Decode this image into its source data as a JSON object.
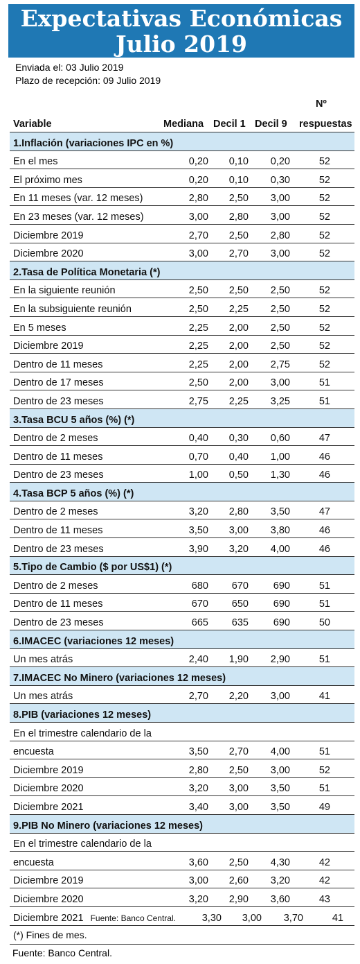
{
  "header": {
    "title_line1": "Expectativas Económicas",
    "title_line2": "Julio 2019"
  },
  "meta": {
    "sent": "Enviada el: 03 Julio 2019",
    "deadline": "Plazo de recepción: 09 Julio 2019"
  },
  "columns": {
    "variable": "Variable",
    "mediana": "Mediana",
    "decil1": "Decil 1",
    "decil9": "Decil 9",
    "n_line1": "Nº",
    "n_line2": "respuestas"
  },
  "sections": [
    {
      "title": "1.Inflación (variaciones IPC en %)",
      "rows": [
        {
          "label": "En el mes",
          "m": "0,20",
          "d1": "0,10",
          "d9": "0,20",
          "n": "52"
        },
        {
          "label": "El próximo mes",
          "m": "0,20",
          "d1": "0,10",
          "d9": "0,30",
          "n": "52"
        },
        {
          "label": "En 11 meses (var. 12 meses)",
          "m": "2,80",
          "d1": "2,50",
          "d9": "3,00",
          "n": "52"
        },
        {
          "label": "En 23 meses (var. 12 meses)",
          "m": "3,00",
          "d1": "2,80",
          "d9": "3,00",
          "n": "52"
        },
        {
          "label": "Diciembre 2019",
          "m": "2,70",
          "d1": "2,50",
          "d9": "2,80",
          "n": "52"
        },
        {
          "label": "Diciembre 2020",
          "m": "3,00",
          "d1": "2,70",
          "d9": "3,00",
          "n": "52"
        }
      ]
    },
    {
      "title": "2.Tasa de Política Monetaria  (*)",
      "rows": [
        {
          "label": "En la siguiente reunión",
          "m": "2,50",
          "d1": "2,50",
          "d9": "2,50",
          "n": "52"
        },
        {
          "label": "En la subsiguiente reunión",
          "m": "2,50",
          "d1": "2,25",
          "d9": "2,50",
          "n": "52"
        },
        {
          "label": "En 5 meses",
          "m": "2,25",
          "d1": "2,00",
          "d9": "2,50",
          "n": "52"
        },
        {
          "label": "Diciembre 2019",
          "m": "2,25",
          "d1": "2,00",
          "d9": "2,50",
          "n": "52"
        },
        {
          "label": "Dentro de 11 meses",
          "m": "2,25",
          "d1": "2,00",
          "d9": "2,75",
          "n": "52"
        },
        {
          "label": "Dentro de 17 meses",
          "m": "2,50",
          "d1": "2,00",
          "d9": "3,00",
          "n": "51"
        },
        {
          "label": "Dentro de 23 meses",
          "m": "2,75",
          "d1": "2,25",
          "d9": "3,25",
          "n": "51"
        }
      ]
    },
    {
      "title": "3.Tasa BCU 5 años  (%)  (*)",
      "rows": [
        {
          "label": "Dentro de 2 meses",
          "m": "0,40",
          "d1": "0,30",
          "d9": "0,60",
          "n": "47"
        },
        {
          "label": "Dentro de 11 meses",
          "m": "0,70",
          "d1": "0,40",
          "d9": "1,00",
          "n": "46"
        },
        {
          "label": "Dentro de 23 meses",
          "m": "1,00",
          "d1": "0,50",
          "d9": "1,30",
          "n": "46"
        }
      ]
    },
    {
      "title": "4.Tasa BCP 5 años  (%) (*)",
      "rows": [
        {
          "label": "Dentro de 2 meses",
          "m": "3,20",
          "d1": "2,80",
          "d9": "3,50",
          "n": "47"
        },
        {
          "label": "Dentro de 11 meses",
          "m": "3,50",
          "d1": "3,00",
          "d9": "3,80",
          "n": "46"
        },
        {
          "label": "Dentro de 23 meses",
          "m": "3,90",
          "d1": "3,20",
          "d9": "4,00",
          "n": "46"
        }
      ]
    },
    {
      "title": "5.Tipo de Cambio  ($ por US$1) (*)",
      "rows": [
        {
          "label": "Dentro de 2 meses",
          "m": "680",
          "d1": "670",
          "d9": "690",
          "n": "51"
        },
        {
          "label": "Dentro de 11 meses",
          "m": "670",
          "d1": "650",
          "d9": "690",
          "n": "51"
        },
        {
          "label": "Dentro de 23 meses",
          "m": "665",
          "d1": "635",
          "d9": "690",
          "n": "50"
        }
      ]
    },
    {
      "title": "6.IMACEC  (variaciones 12 meses)",
      "rows": [
        {
          "label": "Un mes atrás",
          "m": "2,40",
          "d1": "1,90",
          "d9": "2,90",
          "n": "51"
        }
      ]
    },
    {
      "title": "7.IMACEC No Minero (variaciones 12 meses)",
      "rows": [
        {
          "label": "Un mes atrás",
          "m": "2,70",
          "d1": "2,20",
          "d9": "3,00",
          "n": "41"
        }
      ]
    },
    {
      "title": "8.PIB  (variaciones 12 meses)",
      "rows": [
        {
          "label": "En el trimestre calendario de la",
          "m": "",
          "d1": "",
          "d9": "",
          "n": ""
        },
        {
          "label": "encuesta",
          "m": "3,50",
          "d1": "2,70",
          "d9": "4,00",
          "n": "51"
        },
        {
          "label": "Diciembre 2019",
          "m": "2,80",
          "d1": "2,50",
          "d9": "3,00",
          "n": "52"
        },
        {
          "label": "Diciembre 2020",
          "m": "3,20",
          "d1": "3,00",
          "d9": "3,50",
          "n": "51"
        },
        {
          "label": "Diciembre 2021",
          "m": "3,40",
          "d1": "3,00",
          "d9": "3,50",
          "n": "49"
        }
      ]
    },
    {
      "title": "9.PIB No Minero (variaciones 12 meses)",
      "rows": [
        {
          "label": "En el trimestre calendario de la",
          "m": "",
          "d1": "",
          "d9": "",
          "n": ""
        },
        {
          "label": "encuesta",
          "m": "3,60",
          "d1": "2,50",
          "d9": "4,30",
          "n": "42"
        },
        {
          "label": "Diciembre 2019",
          "m": "3,00",
          "d1": "2,60",
          "d9": "3,20",
          "n": "42"
        },
        {
          "label": "Diciembre 2020",
          "m": "3,20",
          "d1": "2,90",
          "d9": "3,60",
          "n": "43"
        },
        {
          "label": "Diciembre 2021",
          "note": "Fuente: Banco Central.",
          "m": "3,30",
          "d1": "3,00",
          "d9": "3,70",
          "n": "41"
        }
      ]
    }
  ],
  "footnote": "(*) Fines de mes.",
  "source": "Fuente: Banco Central."
}
